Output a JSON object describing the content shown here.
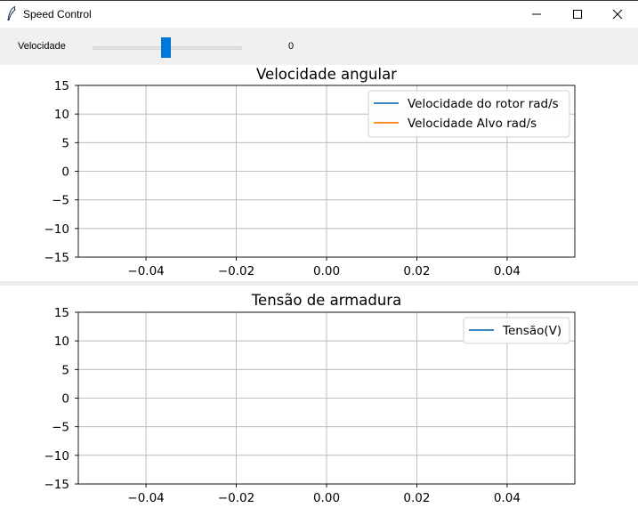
{
  "window": {
    "title": "Speed Control",
    "icon": "feather-icon",
    "controls": [
      "minimize-icon",
      "maximize-icon",
      "close-icon"
    ]
  },
  "controls": {
    "slider_label": "Velocidade",
    "slider_value": "0",
    "slider_fraction": 0.5
  },
  "chart_data": [
    {
      "type": "line",
      "title": "Velocidade angular",
      "xlabel": "",
      "ylabel": "",
      "xlim": [
        -0.055,
        0.055
      ],
      "ylim": [
        -15,
        15
      ],
      "xticks": [
        -0.04,
        -0.02,
        0.0,
        0.02,
        0.04
      ],
      "xtick_labels": [
        "−0.04",
        "−0.02",
        "0.00",
        "0.02",
        "0.04"
      ],
      "yticks": [
        15,
        10,
        5,
        0,
        -5,
        -10,
        -15
      ],
      "ytick_labels": [
        "15",
        "10",
        "5",
        "0",
        "−5",
        "−10",
        "−15"
      ],
      "grid": true,
      "legend_position": "top-right",
      "series": [
        {
          "name": "Velocidade do rotor rad/s",
          "color": "#1f77b4",
          "x": [],
          "y": []
        },
        {
          "name": "Velocidade Alvo rad/s",
          "color": "#ff7f0e",
          "x": [],
          "y": []
        }
      ]
    },
    {
      "type": "line",
      "title": "Tensão de armadura",
      "xlabel": "",
      "ylabel": "",
      "xlim": [
        -0.055,
        0.055
      ],
      "ylim": [
        -15,
        15
      ],
      "xticks": [
        -0.04,
        -0.02,
        0.0,
        0.02,
        0.04
      ],
      "xtick_labels": [
        "−0.04",
        "−0.02",
        "0.00",
        "0.02",
        "0.04"
      ],
      "yticks": [
        15,
        10,
        5,
        0,
        -5,
        -10,
        -15
      ],
      "ytick_labels": [
        "15",
        "10",
        "5",
        "0",
        "−5",
        "−10",
        "−15"
      ],
      "grid": true,
      "legend_position": "top-right",
      "series": [
        {
          "name": "Tensão(V)",
          "color": "#1f77b4",
          "x": [],
          "y": []
        }
      ]
    }
  ]
}
